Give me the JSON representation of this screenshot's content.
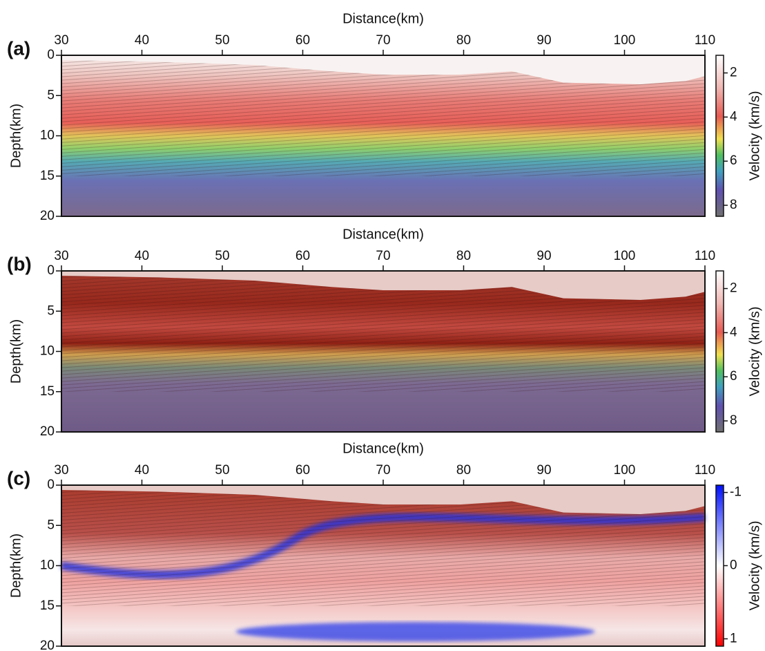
{
  "chart_data": [
    {
      "type": "heatmap",
      "panel_label": "(a)",
      "xlabel": "Distance(km)",
      "ylabel": "Depth(km)",
      "xlim": [
        30,
        110
      ],
      "xticks": [
        30,
        40,
        50,
        60,
        70,
        80,
        90,
        100,
        110
      ],
      "ylim": [
        0,
        20
      ],
      "yticks": [
        0,
        5,
        10,
        15,
        20
      ],
      "colorbar": {
        "label": "Velocity (km/s)",
        "lim": [
          1.2,
          8.5
        ],
        "ticks": [
          2,
          4,
          6,
          8
        ]
      }
    },
    {
      "type": "heatmap",
      "panel_label": "(b)",
      "xlabel": "Distance(km)",
      "ylabel": "Depth(km)",
      "xlim": [
        30,
        110
      ],
      "xticks": [
        30,
        40,
        50,
        60,
        70,
        80,
        90,
        100,
        110
      ],
      "ylim": [
        0,
        20
      ],
      "yticks": [
        0,
        5,
        10,
        15,
        20
      ],
      "colorbar": {
        "label": "Velocity (km/s)",
        "lim": [
          1.2,
          8.5
        ],
        "ticks": [
          2,
          4,
          6,
          8
        ]
      }
    },
    {
      "type": "heatmap",
      "panel_label": "(c)",
      "xlabel": "Distance(km)",
      "ylabel": "Depth(km)",
      "xlim": [
        30,
        110
      ],
      "xticks": [
        30,
        40,
        50,
        60,
        70,
        80,
        90,
        100,
        110
      ],
      "ylim": [
        0,
        20
      ],
      "yticks": [
        0,
        5,
        10,
        15,
        20
      ],
      "colorbar": {
        "label": "Velocity (km/s)",
        "lim": [
          -1.1,
          1.1
        ],
        "ticks": [
          -1,
          0,
          1
        ]
      }
    }
  ]
}
